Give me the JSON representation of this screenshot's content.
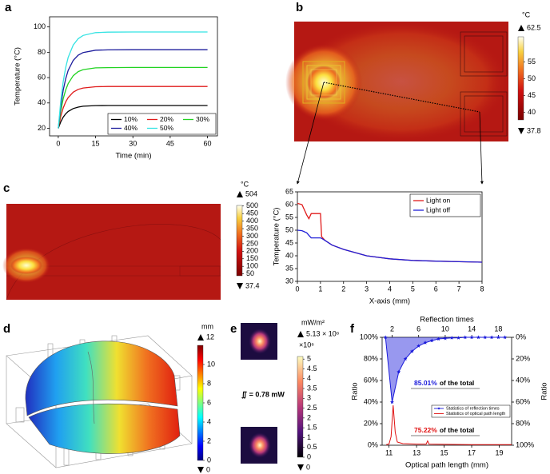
{
  "chart_data": [
    {
      "type": "line",
      "panel": "a",
      "ylabel": "Temperature (°C)",
      "xlabel": "Time (min)",
      "x": [
        0,
        1,
        2,
        3,
        4,
        6,
        8,
        10,
        15,
        20,
        30,
        45,
        60
      ],
      "xlim": [
        -3.5,
        64
      ],
      "xticks": [
        0,
        15,
        30,
        45,
        60
      ],
      "ylim": [
        14,
        108
      ],
      "yticks": [
        20,
        40,
        60,
        80,
        100
      ],
      "legend": "lower right",
      "series": [
        {
          "name": "10%",
          "color": "#000000",
          "values": [
            20,
            25.1,
            28.8,
            31.4,
            33.3,
            35.6,
            36.7,
            37.4,
            37.9,
            38,
            38,
            38,
            38
          ]
        },
        {
          "name": "20%",
          "color": "#e01b1b",
          "values": [
            20,
            29.4,
            36.1,
            40.9,
            44.3,
            48.5,
            50.7,
            51.8,
            52.8,
            53,
            53,
            53,
            53
          ]
        },
        {
          "name": "30%",
          "color": "#22d322",
          "values": [
            20,
            33.6,
            43.4,
            50.3,
            55.3,
            61.5,
            64.7,
            66.3,
            67.7,
            67.9,
            68,
            68,
            68
          ]
        },
        {
          "name": "40%",
          "color": "#1c1c9c",
          "values": [
            20,
            37.6,
            50.2,
            59.2,
            65.7,
            73.6,
            77.7,
            79.8,
            81.6,
            81.9,
            82,
            82,
            82
          ]
        },
        {
          "name": "50%",
          "color": "#35e3e3",
          "values": [
            20,
            41.5,
            57,
            68,
            76,
            85.7,
            90.7,
            93.3,
            95.5,
            95.9,
            96,
            96,
            96
          ]
        }
      ]
    },
    {
      "type": "heatmap",
      "panel": "b",
      "unit": "°C",
      "clim": [
        37.8,
        62.5
      ],
      "cticks": [
        55,
        50,
        45,
        40
      ]
    },
    {
      "type": "line",
      "ylabel": "Temperature (°C)",
      "xlabel": "X-axis (mm)",
      "x": [
        0,
        0.2,
        0.4,
        0.5,
        0.6,
        1.0,
        1.05,
        1.2,
        1.5,
        2,
        3,
        4,
        5,
        6,
        7,
        8
      ],
      "xlim": [
        0,
        8
      ],
      "xticks": [
        0,
        1,
        2,
        3,
        4,
        5,
        6,
        7,
        8
      ],
      "ylim": [
        30,
        65
      ],
      "yticks": [
        30,
        35,
        40,
        45,
        50,
        55,
        60,
        65
      ],
      "legend": "upper right",
      "series": [
        {
          "name": "Light on",
          "color": "#e01b1b",
          "values": [
            60.5,
            60,
            56,
            54.5,
            56.5,
            56.5,
            47.5,
            46,
            44.2,
            42.5,
            40,
            38.8,
            38.2,
            37.9,
            37.7,
            37.5
          ]
        },
        {
          "name": "Light off",
          "color": "#2020d8",
          "values": [
            50,
            49.8,
            49,
            48,
            47,
            47,
            46.8,
            46,
            44.2,
            42.5,
            40,
            38.8,
            38.2,
            37.9,
            37.7,
            37.5
          ]
        }
      ]
    },
    {
      "type": "heatmap",
      "panel": "c",
      "unit": "°C",
      "clim": [
        37.4,
        504
      ],
      "cticks": [
        500,
        450,
        400,
        350,
        300,
        250,
        200,
        150,
        100,
        50
      ]
    },
    {
      "type": "surface",
      "panel": "d",
      "unit": "mm",
      "clim": [
        0,
        12
      ],
      "cticks": [
        10,
        8,
        6,
        4,
        2,
        0
      ]
    },
    {
      "type": "image",
      "panel": "e",
      "unit": "mW/m²",
      "clim": [
        0,
        5.13
      ],
      "max_label": "5.13 × 10⁶",
      "multiplier": "×10⁶",
      "cticks": [
        5,
        4.5,
        4,
        3.5,
        3,
        2.5,
        2,
        1.5,
        1,
        0.5,
        0
      ],
      "integral": "∬ = 0.78 mW"
    },
    {
      "type": "dual_line",
      "panel": "f",
      "xlabel": "Optical path length (mm)",
      "x2label": "Reflection times",
      "ylabel": "Ratio",
      "y2label": "Ratio",
      "xlim": [
        10.5,
        19.9
      ],
      "xticks": [
        11,
        13,
        15,
        17,
        19
      ],
      "x2lim": [
        0.5,
        20
      ],
      "x2ticks": [
        2,
        6,
        10,
        14,
        18
      ],
      "ylim": [
        0,
        100
      ],
      "yticks": [
        {
          "value": 0,
          "label": "0%"
        },
        {
          "value": 20,
          "label": "20%"
        },
        {
          "value": 40,
          "label": "40%"
        },
        {
          "value": 60,
          "label": "60%"
        },
        {
          "value": 80,
          "label": "80%"
        },
        {
          "value": 100,
          "label": "100%"
        }
      ],
      "y2lim": [
        100,
        0
      ],
      "y2ticks": [
        {
          "value": 0,
          "label": "0%"
        },
        {
          "value": 20,
          "label": "20%"
        },
        {
          "value": 40,
          "label": "40%"
        },
        {
          "value": 60,
          "label": "60%"
        },
        {
          "value": 80,
          "label": "80%"
        },
        {
          "value": 100,
          "label": "100%"
        }
      ],
      "legend": "lower right",
      "series": [
        {
          "name": "Statistics of reflection times",
          "color": "#1a1adb",
          "xaxis": "x2",
          "x": [
            1,
            2,
            3,
            4,
            5,
            6,
            7,
            8,
            9,
            10,
            11,
            12,
            13,
            14,
            15,
            16,
            17,
            18,
            19
          ],
          "values": [
            100,
            40,
            68,
            80,
            87,
            92,
            95,
            97,
            98.5,
            99,
            99.5,
            99.5,
            100,
            100,
            100,
            100,
            100,
            100,
            100
          ]
        },
        {
          "name": "Statistics of optical path length",
          "color": "#e01010",
          "x": [
            10.8,
            11.0,
            11.15,
            11.3,
            11.45,
            11.6,
            12.0,
            13.0,
            13.7,
            13.8,
            13.9,
            15.0,
            17.0,
            19.0,
            19.9
          ],
          "values": [
            0.5,
            1,
            8,
            37,
            12,
            3,
            1.5,
            1,
            1,
            4,
            1,
            0.8,
            0.5,
            0.5,
            0.5
          ]
        }
      ],
      "annotations": [
        {
          "emphasis": "85.01%",
          "text": "of the total"
        },
        {
          "emphasis": "75.22%",
          "text": "of the total"
        }
      ]
    }
  ]
}
